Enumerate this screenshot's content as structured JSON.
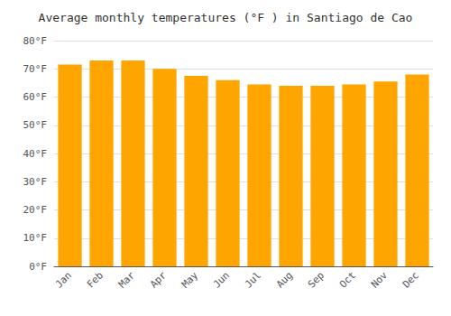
{
  "chart_data": {
    "type": "bar",
    "title": "Average monthly temperatures (°F ) in Santiago de Cao",
    "categories": [
      "Jan",
      "Feb",
      "Mar",
      "Apr",
      "May",
      "Jun",
      "Jul",
      "Aug",
      "Sep",
      "Oct",
      "Nov",
      "Dec"
    ],
    "values": [
      71.5,
      73.0,
      73.0,
      70.0,
      67.5,
      66.0,
      64.5,
      64.0,
      64.0,
      64.5,
      65.5,
      68.0
    ],
    "color": "#FFA500",
    "ylim": [
      0,
      80
    ],
    "yticks": [
      {
        "value": 0,
        "label": "0°F"
      },
      {
        "value": 10,
        "label": "10°F"
      },
      {
        "value": 20,
        "label": "20°F"
      },
      {
        "value": 30,
        "label": "30°F"
      },
      {
        "value": 40,
        "label": "40°F"
      },
      {
        "value": 50,
        "label": "50°F"
      },
      {
        "value": 60,
        "label": "60°F"
      },
      {
        "value": 70,
        "label": "70°F"
      },
      {
        "value": 80,
        "label": "80°F"
      }
    ],
    "grid": true
  }
}
